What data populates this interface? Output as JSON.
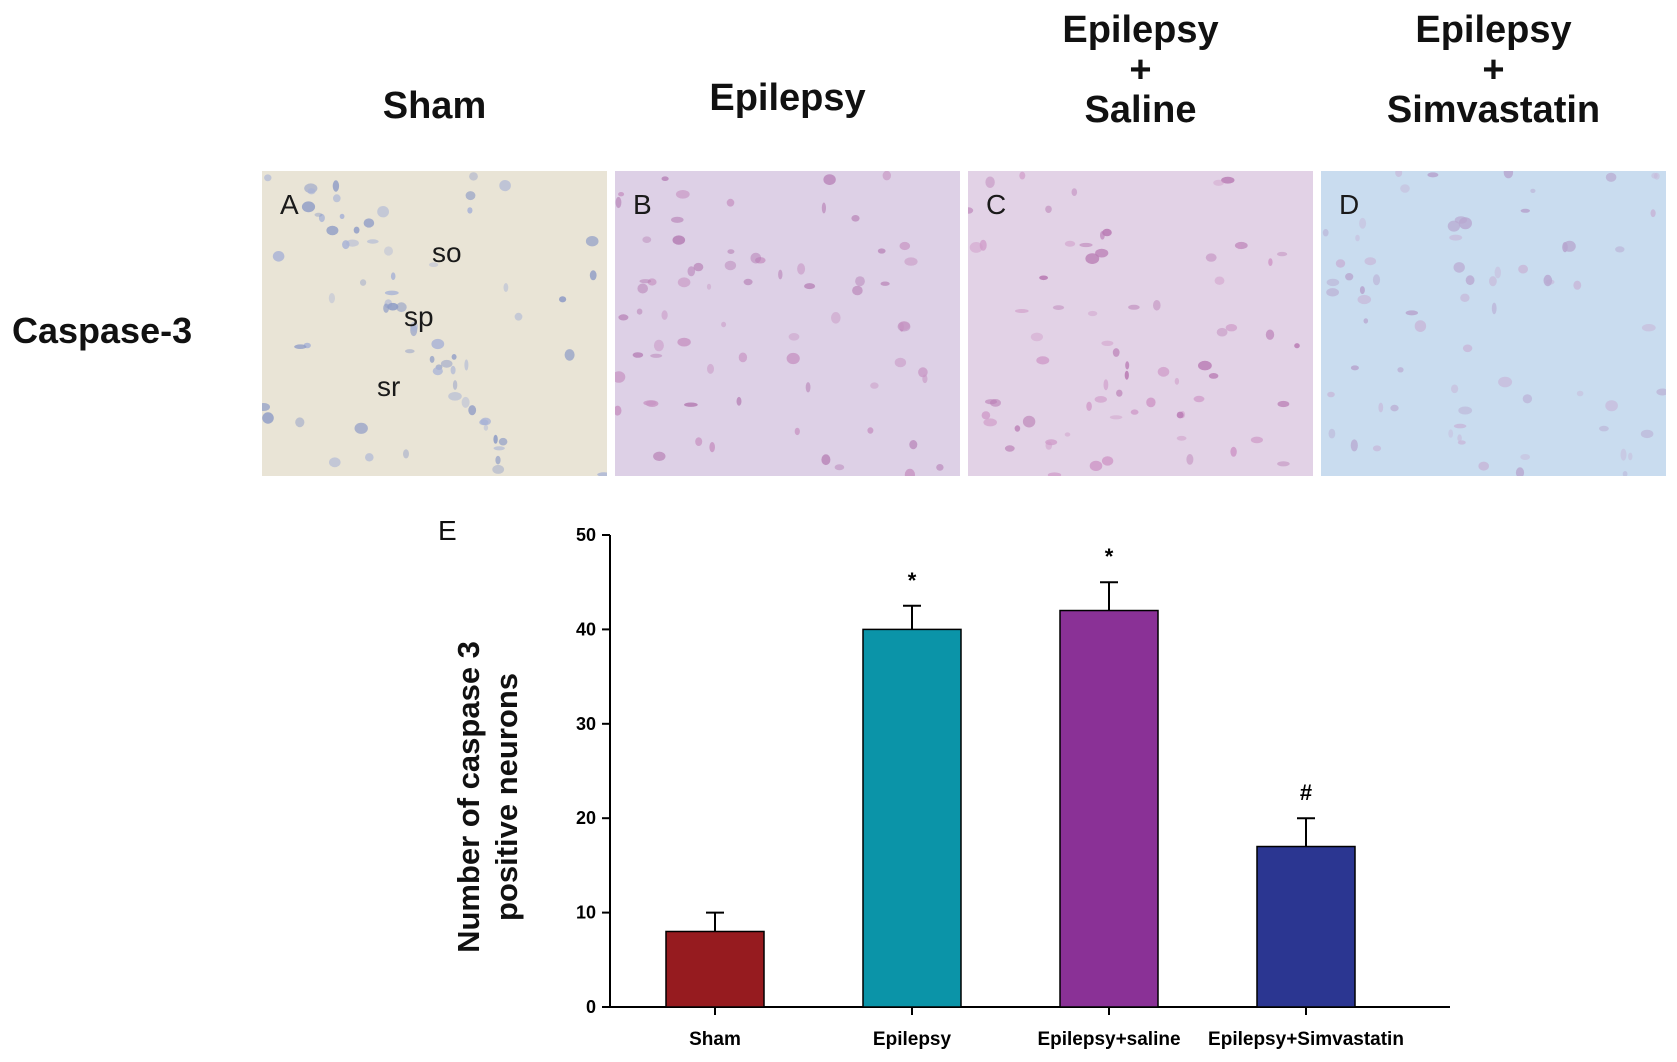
{
  "header": {
    "sham": [
      "Sham"
    ],
    "epilepsy": [
      "Epilepsy"
    ],
    "epilepsy_saline": [
      "Epilepsy",
      "+",
      "Saline"
    ],
    "epilepsy_simvastatin": [
      "Epilepsy",
      "+",
      "Simvastatin"
    ]
  },
  "row_label": "Caspase-3",
  "panels": [
    {
      "letter": "A",
      "regions": [
        "so",
        "sp",
        "sr"
      ]
    },
    {
      "letter": "B"
    },
    {
      "letter": "C"
    },
    {
      "letter": "D"
    }
  ],
  "chart_letter": "E",
  "chart_data": {
    "type": "bar",
    "categories": [
      "Sham",
      "Epilepsy",
      "Epilepsy+saline",
      "Epilepsy+Simvastatin"
    ],
    "values": [
      8,
      40,
      42,
      17
    ],
    "errors": [
      2,
      2.5,
      3,
      3
    ],
    "annotations": [
      "",
      "*",
      "*",
      "#"
    ],
    "colors": [
      "#961b1f",
      "#0b94a8",
      "#8a3196",
      "#2b3691"
    ],
    "ylabel_lines": [
      "Number of caspase 3",
      "positive neurons"
    ],
    "xlabel": "",
    "ylim": [
      0,
      50
    ],
    "yticks": [
      0,
      10,
      20,
      30,
      40,
      50
    ],
    "grid": false
  }
}
